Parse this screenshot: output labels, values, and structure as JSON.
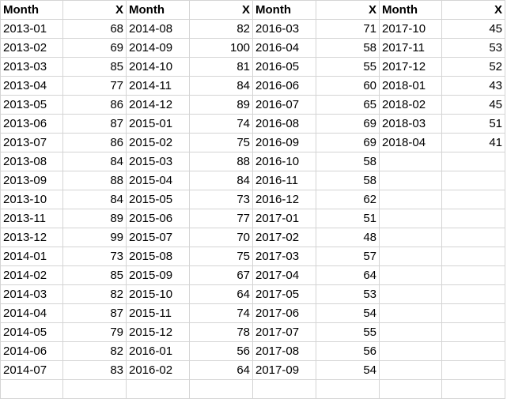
{
  "sheet": {
    "headers": [
      "Month",
      "X",
      "Month",
      "X",
      "Month",
      "X",
      "Month",
      "X"
    ],
    "rows": [
      [
        "2013-01",
        "68",
        "2014-08",
        "82",
        "2016-03",
        "71",
        "2017-10",
        "45"
      ],
      [
        "2013-02",
        "69",
        "2014-09",
        "100",
        "2016-04",
        "58",
        "2017-11",
        "53"
      ],
      [
        "2013-03",
        "85",
        "2014-10",
        "81",
        "2016-05",
        "55",
        "2017-12",
        "52"
      ],
      [
        "2013-04",
        "77",
        "2014-11",
        "84",
        "2016-06",
        "60",
        "2018-01",
        "43"
      ],
      [
        "2013-05",
        "86",
        "2014-12",
        "89",
        "2016-07",
        "65",
        "2018-02",
        "45"
      ],
      [
        "2013-06",
        "87",
        "2015-01",
        "74",
        "2016-08",
        "69",
        "2018-03",
        "51"
      ],
      [
        "2013-07",
        "86",
        "2015-02",
        "75",
        "2016-09",
        "69",
        "2018-04",
        "41"
      ],
      [
        "2013-08",
        "84",
        "2015-03",
        "88",
        "2016-10",
        "58",
        "",
        ""
      ],
      [
        "2013-09",
        "88",
        "2015-04",
        "84",
        "2016-11",
        "58",
        "",
        ""
      ],
      [
        "2013-10",
        "84",
        "2015-05",
        "73",
        "2016-12",
        "62",
        "",
        ""
      ],
      [
        "2013-11",
        "89",
        "2015-06",
        "77",
        "2017-01",
        "51",
        "",
        ""
      ],
      [
        "2013-12",
        "99",
        "2015-07",
        "70",
        "2017-02",
        "48",
        "",
        ""
      ],
      [
        "2014-01",
        "73",
        "2015-08",
        "75",
        "2017-03",
        "57",
        "",
        ""
      ],
      [
        "2014-02",
        "85",
        "2015-09",
        "67",
        "2017-04",
        "64",
        "",
        ""
      ],
      [
        "2014-03",
        "82",
        "2015-10",
        "64",
        "2017-05",
        "53",
        "",
        ""
      ],
      [
        "2014-04",
        "87",
        "2015-11",
        "74",
        "2017-06",
        "54",
        "",
        ""
      ],
      [
        "2014-05",
        "79",
        "2015-12",
        "78",
        "2017-07",
        "55",
        "",
        ""
      ],
      [
        "2014-06",
        "82",
        "2016-01",
        "56",
        "2017-08",
        "56",
        "",
        ""
      ],
      [
        "2014-07",
        "83",
        "2016-02",
        "64",
        "2017-09",
        "54",
        "",
        ""
      ]
    ]
  }
}
